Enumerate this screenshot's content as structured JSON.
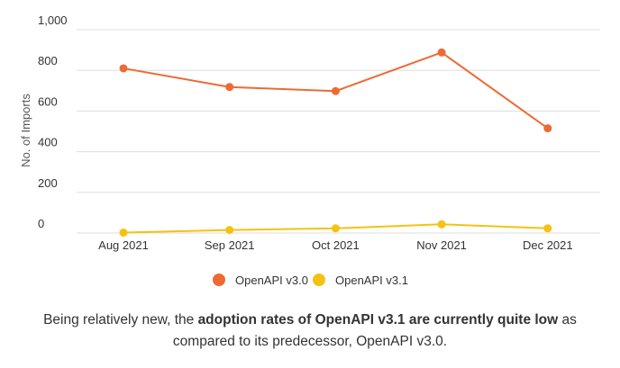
{
  "chart_data": {
    "type": "line",
    "categories": [
      "Aug 2021",
      "Sep 2021",
      "Oct 2021",
      "Nov 2021",
      "Dec 2021"
    ],
    "series": [
      {
        "name": "OpenAPI v3.0",
        "color": "#ee6a34",
        "values": [
          810,
          718,
          698,
          888,
          515
        ]
      },
      {
        "name": "OpenAPI v3.1",
        "color": "#f5c211",
        "values": [
          2,
          15,
          23,
          43,
          23
        ]
      }
    ],
    "xlabel": "",
    "ylabel": "No. of Imports",
    "ylim": [
      0,
      1000
    ],
    "yticks": [
      0,
      200,
      400,
      600,
      800,
      1000
    ],
    "ytick_labels": [
      "0",
      "200",
      "400",
      "600",
      "800",
      "1,000"
    ],
    "grid": true,
    "legend_position": "bottom"
  },
  "caption": {
    "part1": "Being relatively new, the ",
    "bold": "adoption rates of OpenAPI v3.1 are currently quite low",
    "part2": " as compared to its predecessor, OpenAPI v3.0."
  }
}
